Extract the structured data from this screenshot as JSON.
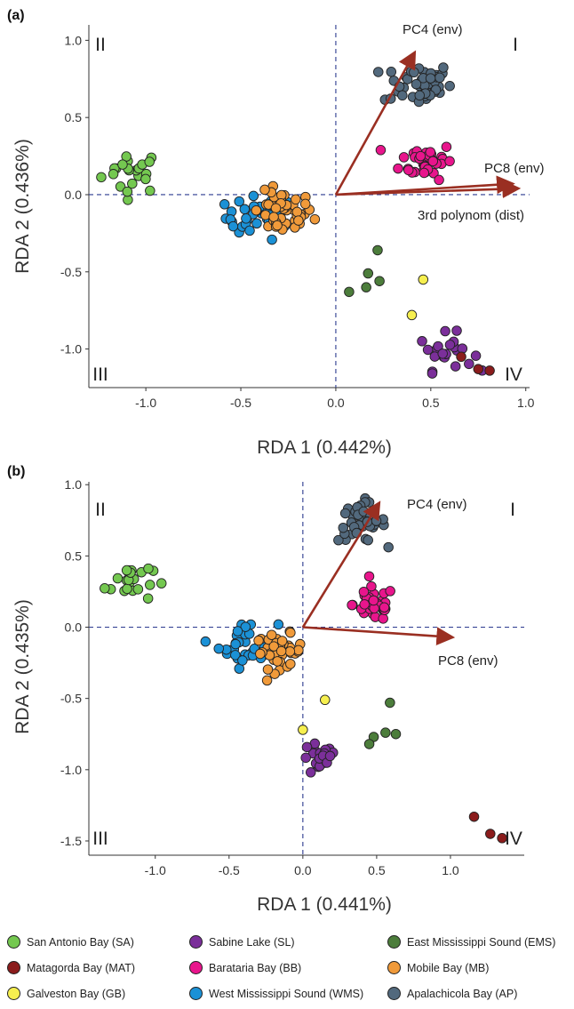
{
  "colors": {
    "SA": "#74c850",
    "MAT": "#8b1c1c",
    "GB": "#f6ef4f",
    "SL": "#7b2f9a",
    "BB": "#e8158c",
    "WMS": "#1b91d6",
    "EMS": "#4c7d3b",
    "MB": "#f09a3a",
    "AP": "#52697d",
    "arrow": "#9a2f22",
    "dash": "#2b3a8f"
  },
  "legend": [
    {
      "key": "SA",
      "label": "San Antonio Bay (SA)"
    },
    {
      "key": "SL",
      "label": "Sabine Lake (SL)"
    },
    {
      "key": "EMS",
      "label": "East Mississippi Sound (EMS)"
    },
    {
      "key": "MAT",
      "label": "Matagorda Bay (MAT)"
    },
    {
      "key": "BB",
      "label": "Barataria Bay (BB)"
    },
    {
      "key": "MB",
      "label": "Mobile Bay (MB)"
    },
    {
      "key": "GB",
      "label": "Galveston Bay (GB)"
    },
    {
      "key": "WMS",
      "label": "West Mississippi Sound (WMS)"
    },
    {
      "key": "AP",
      "label": "Apalachicola Bay (AP)"
    }
  ],
  "chart_data": [
    {
      "type": "scatter",
      "panel": "(a)",
      "xlabel": "RDA 1 (0.442%)",
      "ylabel": "RDA 2 (0.436%)",
      "xlim": [
        -1.3,
        1.02
      ],
      "ylim": [
        -1.25,
        1.1
      ],
      "xticks": [
        "-1.0",
        "-0.5",
        "0.0",
        "0.5",
        "1.0"
      ],
      "yticks": [
        "1.0",
        "0.5",
        "0.0",
        "-0.5",
        "-1.0"
      ],
      "quadrants": {
        "I": "I",
        "II": "II",
        "III": "III",
        "IV": "IV"
      },
      "arrows": [
        {
          "label": "PC4 (env)",
          "x": 0.41,
          "y": 0.91
        },
        {
          "label": "PC8 (env)",
          "x": 0.92,
          "y": 0.07
        },
        {
          "label": "3rd polynom (dist)",
          "x": 0.95,
          "y": 0.04
        }
      ],
      "series": [
        {
          "key": "SA",
          "center": [
            -1.07,
            0.15
          ],
          "spread": [
            0.08,
            0.07
          ],
          "n": 22
        },
        {
          "key": "WMS",
          "center": [
            -0.4,
            -0.15
          ],
          "spread": [
            0.09,
            0.07
          ],
          "n": 32
        },
        {
          "key": "MB",
          "center": [
            -0.28,
            -0.12
          ],
          "spread": [
            0.08,
            0.07
          ],
          "n": 45
        },
        {
          "key": "AP",
          "center": [
            0.43,
            0.72
          ],
          "spread": [
            0.09,
            0.07
          ],
          "n": 45
        },
        {
          "key": "BB",
          "center": [
            0.48,
            0.22
          ],
          "spread": [
            0.07,
            0.06
          ],
          "n": 40
        },
        {
          "key": "SL",
          "center": [
            0.58,
            -1.02
          ],
          "spread": [
            0.07,
            0.06
          ],
          "n": 22
        },
        {
          "key": "EMS",
          "points": [
            [
              0.22,
              -0.36
            ],
            [
              0.17,
              -0.51
            ],
            [
              0.23,
              -0.56
            ],
            [
              0.16,
              -0.6
            ],
            [
              0.07,
              -0.63
            ]
          ]
        },
        {
          "key": "GB",
          "points": [
            [
              0.46,
              -0.55
            ],
            [
              0.4,
              -0.78
            ]
          ]
        },
        {
          "key": "MAT",
          "points": [
            [
              0.66,
              -1.05
            ],
            [
              0.75,
              -1.13
            ],
            [
              0.81,
              -1.14
            ]
          ]
        }
      ]
    },
    {
      "type": "scatter",
      "panel": "(b)",
      "xlabel": "RDA 1 (0.441%)",
      "ylabel": "RDA 2 (0.435%)",
      "xlim": [
        -1.45,
        1.5
      ],
      "ylim": [
        -1.6,
        1.02
      ],
      "xticks": [
        "-1.0",
        "-0.5",
        "0.0",
        "0.5",
        "1.0"
      ],
      "yticks": [
        "1.0",
        "0.5",
        "0.0",
        "-0.5",
        "-1.0",
        "-1.5"
      ],
      "quadrants": {
        "I": "I",
        "II": "II",
        "III": "III",
        "IV": "IV"
      },
      "arrows": [
        {
          "label": "PC4 (env)",
          "x": 0.51,
          "y": 0.86
        },
        {
          "label": "PC8 (env)",
          "x": 1.0,
          "y": -0.07
        }
      ],
      "series": [
        {
          "key": "SA",
          "center": [
            -1.18,
            0.33
          ],
          "spread": [
            0.08,
            0.08
          ],
          "n": 22
        },
        {
          "key": "WMS",
          "center": [
            -0.37,
            -0.12
          ],
          "spread": [
            0.1,
            0.08
          ],
          "n": 32
        },
        {
          "key": "MB",
          "center": [
            -0.16,
            -0.17
          ],
          "spread": [
            0.08,
            0.06
          ],
          "n": 45
        },
        {
          "key": "AP",
          "center": [
            0.4,
            0.74
          ],
          "spread": [
            0.08,
            0.07
          ],
          "n": 45
        },
        {
          "key": "BB",
          "center": [
            0.48,
            0.16
          ],
          "spread": [
            0.07,
            0.06
          ],
          "n": 40
        },
        {
          "key": "SL",
          "center": [
            0.11,
            -0.93
          ],
          "spread": [
            0.06,
            0.06
          ],
          "n": 22
        },
        {
          "key": "EMS",
          "points": [
            [
              0.59,
              -0.53
            ],
            [
              0.56,
              -0.74
            ],
            [
              0.48,
              -0.77
            ],
            [
              0.63,
              -0.75
            ],
            [
              0.45,
              -0.82
            ]
          ]
        },
        {
          "key": "GB",
          "points": [
            [
              0.15,
              -0.51
            ],
            [
              0.0,
              -0.72
            ]
          ]
        },
        {
          "key": "MAT",
          "points": [
            [
              1.16,
              -1.33
            ],
            [
              1.27,
              -1.45
            ],
            [
              1.35,
              -1.48
            ]
          ]
        }
      ]
    }
  ]
}
